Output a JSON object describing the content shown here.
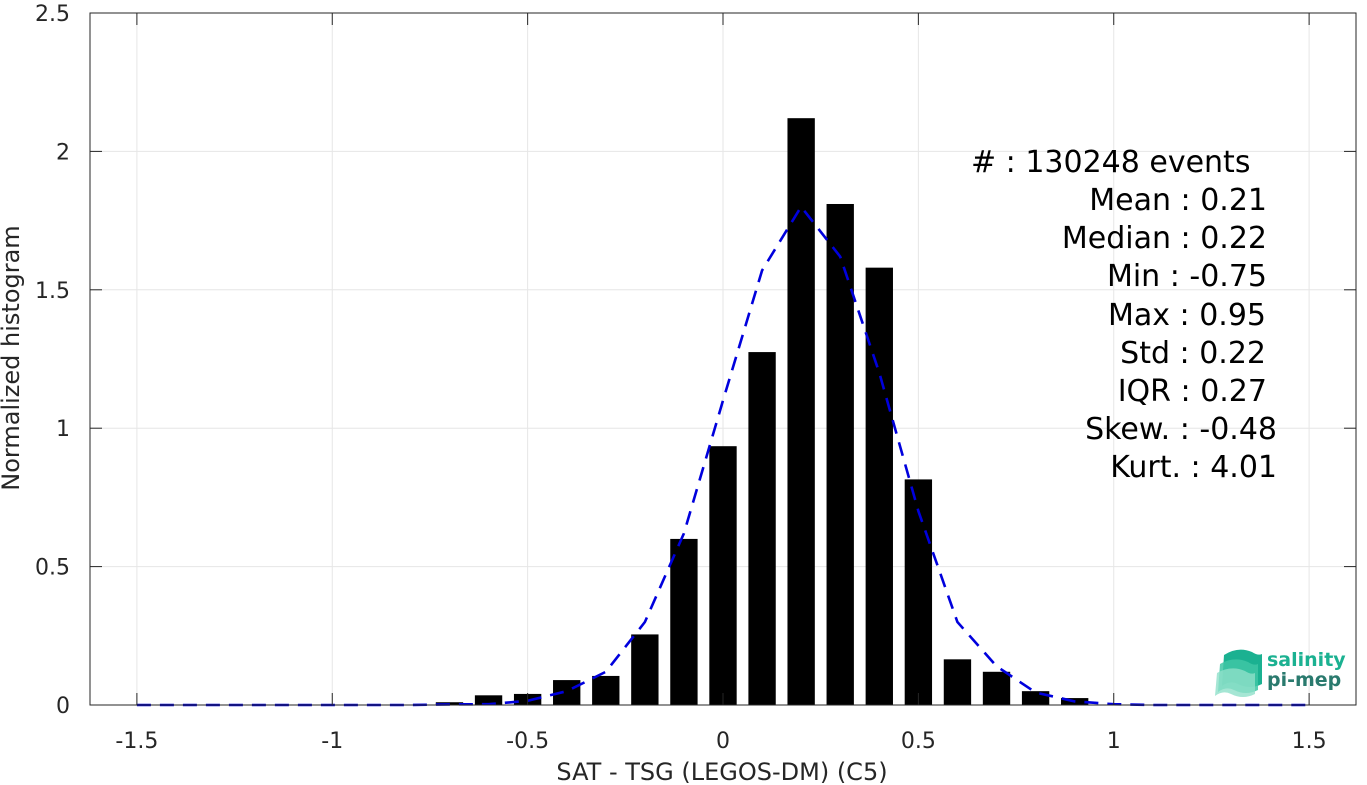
{
  "chart_data": {
    "type": "bar",
    "xlabel": "SAT - TSG (LEGOS-DM) (C5)",
    "ylabel": "Normalized histogram",
    "xlim": [
      -1.62,
      1.62
    ],
    "ylim": [
      0,
      2.5
    ],
    "xticks": [
      -1.5,
      -1,
      -0.5,
      0,
      0.5,
      1,
      1.5
    ],
    "xtick_labels": [
      "-1.5",
      "-1",
      "-0.5",
      "0",
      "0.5",
      "1",
      "1.5"
    ],
    "yticks": [
      0,
      0.5,
      1,
      1.5,
      2,
      2.5
    ],
    "ytick_labels": [
      "0",
      "0.5",
      "1",
      "1.5",
      "2",
      "2.5"
    ],
    "grid": true,
    "bar_color": "#000000",
    "bar_width": 0.07,
    "bars": {
      "x": [
        -0.7,
        -0.6,
        -0.5,
        -0.4,
        -0.3,
        -0.2,
        -0.1,
        0.0,
        0.1,
        0.2,
        0.3,
        0.4,
        0.5,
        0.6,
        0.7,
        0.8,
        0.9
      ],
      "values": [
        0.01,
        0.035,
        0.04,
        0.09,
        0.105,
        0.255,
        0.6,
        0.935,
        1.275,
        2.12,
        1.81,
        1.58,
        0.815,
        0.165,
        0.12,
        0.05,
        0.025
      ]
    },
    "fit_curve": {
      "style": "dashed",
      "color": "#0000dd",
      "x": [
        -1.5,
        -1.4,
        -1.3,
        -1.2,
        -1.1,
        -1.0,
        -0.9,
        -0.8,
        -0.7,
        -0.6,
        -0.5,
        -0.4,
        -0.3,
        -0.2,
        -0.1,
        0.0,
        0.1,
        0.2,
        0.3,
        0.4,
        0.5,
        0.6,
        0.7,
        0.8,
        0.9,
        1.0,
        1.1,
        1.2,
        1.3,
        1.4,
        1.5
      ],
      "y": [
        0,
        0,
        0,
        0,
        0,
        0,
        0,
        0,
        0.002,
        0.003,
        0.015,
        0.05,
        0.12,
        0.3,
        0.62,
        1.1,
        1.57,
        1.8,
        1.62,
        1.2,
        0.7,
        0.3,
        0.14,
        0.045,
        0.013,
        0.003,
        0,
        0,
        0,
        0,
        0
      ]
    },
    "stats": [
      {
        "label": "#   : 130248 events"
      },
      {
        "label": "Mean : 0.21"
      },
      {
        "label": "Median : 0.22"
      },
      {
        "label": "Min : -0.75"
      },
      {
        "label": "Max : 0.95"
      },
      {
        "label": "Std : 0.22"
      },
      {
        "label": "IQR : 0.27"
      },
      {
        "label": "Skew. : -0.48"
      },
      {
        "label": "Kurt. : 4.01"
      }
    ]
  },
  "logo": {
    "line1": "salinity",
    "line2": "pi-mep",
    "color1": "#1bb191",
    "color2": "#2a7a6e"
  }
}
